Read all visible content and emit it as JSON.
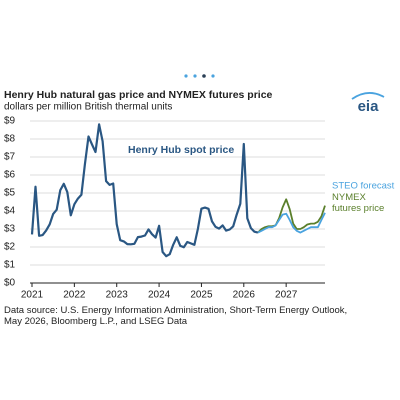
{
  "chart_data": {
    "type": "line",
    "title": "Henry Hub natural gas price and NYMEX futures price",
    "subtitle": "dollars per million British thermal units",
    "logo": "eia",
    "source": "Data source: U.S. Energy Information Administration, Short-Term Energy Outlook, May 2026, Bloomberg L.P., and LSEG Data",
    "x": [
      2021,
      2021.083,
      2021.167,
      2021.25,
      2021.333,
      2021.417,
      2021.5,
      2021.583,
      2021.667,
      2021.75,
      2021.833,
      2021.917,
      2022,
      2022.083,
      2022.167,
      2022.25,
      2022.333,
      2022.417,
      2022.5,
      2022.583,
      2022.667,
      2022.75,
      2022.833,
      2022.917,
      2023,
      2023.083,
      2023.167,
      2023.25,
      2023.333,
      2023.417,
      2023.5,
      2023.583,
      2023.667,
      2023.75,
      2023.833,
      2023.917,
      2024,
      2024.083,
      2024.167,
      2024.25,
      2024.333,
      2024.417,
      2024.5,
      2024.583,
      2024.667,
      2024.75,
      2024.833,
      2024.917,
      2025,
      2025.083,
      2025.167,
      2025.25,
      2025.333,
      2025.417,
      2025.5,
      2025.583,
      2025.667,
      2025.75,
      2025.833,
      2025.917,
      2026,
      2026.083,
      2026.167,
      2026.25,
      2026.333,
      2026.417,
      2026.5,
      2026.583,
      2026.667,
      2026.75,
      2026.833,
      2026.917,
      2027,
      2027.083,
      2027.167,
      2027.25,
      2027.333,
      2027.417,
      2027.5,
      2027.583,
      2027.667,
      2027.75,
      2027.833,
      2027.917
    ],
    "series": [
      {
        "name": "Henry Hub spot price",
        "color": "#2a5783",
        "values": [
          2.7,
          5.35,
          2.62,
          2.66,
          2.91,
          3.26,
          3.84,
          4.07,
          5.16,
          5.51,
          5.05,
          3.76,
          4.38,
          4.69,
          4.9,
          6.6,
          8.14,
          7.7,
          7.28,
          8.81,
          7.88,
          5.66,
          5.45,
          5.53,
          3.27,
          2.38,
          2.31,
          2.16,
          2.15,
          2.18,
          2.55,
          2.58,
          2.64,
          2.98,
          2.71,
          2.52,
          3.18,
          1.72,
          1.49,
          1.6,
          2.12,
          2.54,
          2.06,
          1.99,
          2.28,
          2.2,
          2.12,
          3.01,
          4.13,
          4.19,
          4.12,
          3.42,
          3.12,
          3.02,
          3.2,
          2.91,
          2.97,
          3.15,
          3.8,
          4.4,
          7.72,
          3.6,
          3.05,
          2.85,
          2.8,
          null,
          null,
          null,
          null,
          null,
          null,
          null,
          null,
          null,
          null,
          null,
          null,
          null,
          null,
          null,
          null,
          null,
          null,
          null
        ]
      },
      {
        "name": "STEO forecast",
        "color": "#4aa3df",
        "values": [
          null,
          null,
          null,
          null,
          null,
          null,
          null,
          null,
          null,
          null,
          null,
          null,
          null,
          null,
          null,
          null,
          null,
          null,
          null,
          null,
          null,
          null,
          null,
          null,
          null,
          null,
          null,
          null,
          null,
          null,
          null,
          null,
          null,
          null,
          null,
          null,
          null,
          null,
          null,
          null,
          null,
          null,
          null,
          null,
          null,
          null,
          null,
          null,
          null,
          null,
          null,
          null,
          null,
          null,
          null,
          null,
          null,
          null,
          null,
          null,
          null,
          null,
          null,
          null,
          2.8,
          2.9,
          3.0,
          3.1,
          3.1,
          3.2,
          3.5,
          3.8,
          3.85,
          3.5,
          3.1,
          2.9,
          2.8,
          2.9,
          3.0,
          3.1,
          3.1,
          3.1,
          3.5,
          3.9
        ]
      },
      {
        "name": "NYMEX futures price",
        "color": "#5a7f2b",
        "values": [
          null,
          null,
          null,
          null,
          null,
          null,
          null,
          null,
          null,
          null,
          null,
          null,
          null,
          null,
          null,
          null,
          null,
          null,
          null,
          null,
          null,
          null,
          null,
          null,
          null,
          null,
          null,
          null,
          null,
          null,
          null,
          null,
          null,
          null,
          null,
          null,
          null,
          null,
          null,
          null,
          null,
          null,
          null,
          null,
          null,
          null,
          null,
          null,
          null,
          null,
          null,
          null,
          null,
          null,
          null,
          null,
          null,
          null,
          null,
          null,
          null,
          null,
          null,
          null,
          2.8,
          3.0,
          3.1,
          3.15,
          3.15,
          3.2,
          3.6,
          4.2,
          4.65,
          4.1,
          3.3,
          3.0,
          3.0,
          3.1,
          3.25,
          3.3,
          3.3,
          3.4,
          3.7,
          4.3
        ]
      }
    ],
    "xlim": [
      2021,
      2027.917
    ],
    "xticks": [
      2021,
      2022,
      2023,
      2024,
      2025,
      2026,
      2027
    ],
    "ylim": [
      0,
      9
    ],
    "yticks": [
      {
        "value": 0,
        "label": "$0"
      },
      {
        "value": 1,
        "label": "$1"
      },
      {
        "value": 2,
        "label": "$2"
      },
      {
        "value": 3,
        "label": "$3"
      },
      {
        "value": 4,
        "label": "$4"
      },
      {
        "value": 5,
        "label": "$5"
      },
      {
        "value": 6,
        "label": "$6"
      },
      {
        "value": 7,
        "label": "$7"
      },
      {
        "value": 8,
        "label": "$8"
      },
      {
        "value": 9,
        "label": "$9"
      }
    ],
    "grid": true
  }
}
